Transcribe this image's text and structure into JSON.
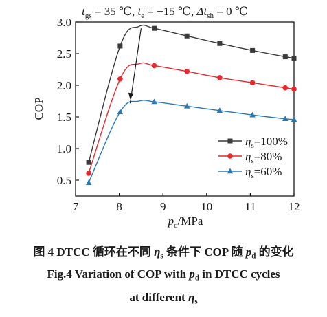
{
  "chart_data": {
    "type": "line",
    "title": {
      "t_sym": "t",
      "t_sub": "gs",
      "t_val": " = 35 ℃, ",
      "te_sym": "t",
      "te_sub": "e",
      "te_val": " = −15 ℃, ",
      "dt_sym": "Δt",
      "dt_sub": "sh",
      "dt_val": " = 0 ℃"
    },
    "xlabel": {
      "sym": "p",
      "sub": "d",
      "unit": "/MPa"
    },
    "ylabel": "COP",
    "xlim": [
      7,
      12
    ],
    "ylim": [
      0.25,
      3.0
    ],
    "xticks": [
      "7",
      "8",
      "9",
      "10",
      "11",
      "12"
    ],
    "yticks": [
      "0.5",
      "1.0",
      "1.5",
      "2.0",
      "2.5",
      "3.0"
    ],
    "xtick_values": [
      7,
      8,
      9,
      10,
      11,
      12
    ],
    "ytick_values": [
      0.5,
      1.0,
      1.5,
      2.0,
      2.5,
      3.0
    ],
    "grid": false,
    "legend_position": "lower-right",
    "series": [
      {
        "label_sym": "η",
        "label_sub": "s",
        "label_val": "=100%",
        "color": "#3a3a3a",
        "marker": "square",
        "x": [
          7.3,
          8.02,
          8.8,
          9.55,
          10.3,
          11.05,
          11.8,
          12.0
        ],
        "y": [
          0.78,
          2.62,
          2.9,
          2.78,
          2.66,
          2.55,
          2.45,
          2.43
        ],
        "peak": [
          8.45,
          2.93
        ]
      },
      {
        "label_sym": "η",
        "label_sub": "s",
        "label_val": "=80%",
        "color": "#e8272c",
        "marker": "circle",
        "x": [
          7.3,
          8.02,
          8.8,
          9.55,
          10.3,
          11.05,
          11.8,
          12.0
        ],
        "y": [
          0.61,
          2.1,
          2.31,
          2.22,
          2.12,
          2.04,
          1.96,
          1.94
        ],
        "peak": [
          8.45,
          2.34
        ]
      },
      {
        "label_sym": "η",
        "label_sub": "s",
        "label_val": "=60%",
        "color": "#2878b8",
        "marker": "triangle",
        "x": [
          7.3,
          8.02,
          8.8,
          9.55,
          10.3,
          11.05,
          11.8,
          12.0
        ],
        "y": [
          0.46,
          1.58,
          1.74,
          1.67,
          1.6,
          1.53,
          1.47,
          1.46
        ],
        "peak": [
          8.45,
          1.75
        ]
      }
    ],
    "annotation": {
      "type": "arrow",
      "from": [
        8.5,
        2.9
      ],
      "to": [
        8.25,
        1.78
      ]
    }
  },
  "caption": {
    "cn_pre": "图 4 DTCC 循环在不同 ",
    "cn_eta": "η",
    "cn_eta_sub": "s",
    "cn_mid": " 条件下 COP 随 ",
    "cn_p": "p",
    "cn_p_sub": "d",
    "cn_post": " 的变化",
    "en1_pre": "Fig.4 Variation of COP with ",
    "en1_p": "p",
    "en1_p_sub": "d",
    "en1_post": " in DTCC cycles",
    "en2_pre": "at different ",
    "en2_eta": "η",
    "en2_eta_sub": "s"
  }
}
